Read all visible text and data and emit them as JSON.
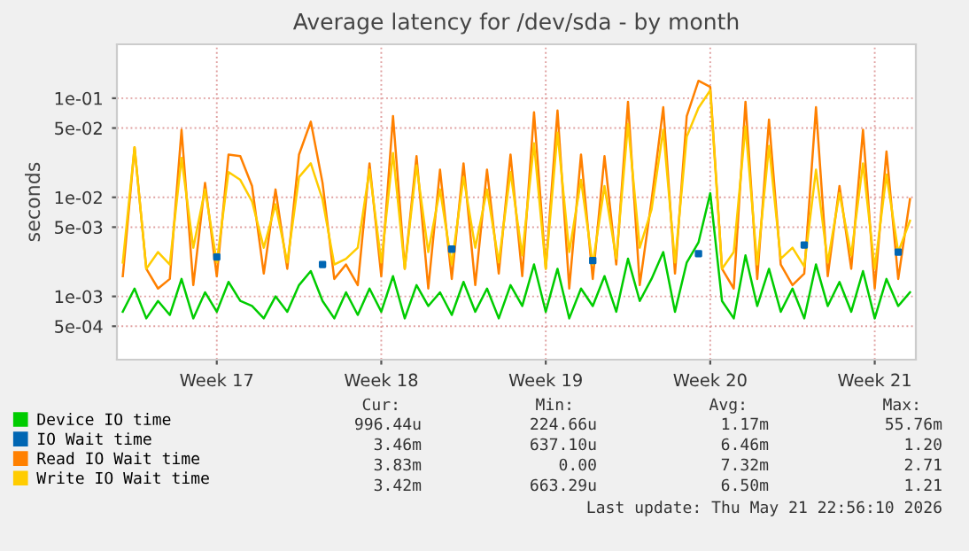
{
  "chart_data": {
    "type": "line",
    "title": "Average latency for /dev/sda - by month",
    "ylabel": "seconds",
    "log": "y",
    "grid": true,
    "legend": "bottom left",
    "line_style": "solid",
    "categories": [
      null,
      null,
      null,
      null,
      null,
      null,
      null,
      null,
      "Week 17",
      null,
      null,
      null,
      null,
      null,
      null,
      null,
      null,
      null,
      null,
      null,
      null,
      null,
      "Week 18",
      null,
      null,
      null,
      null,
      null,
      null,
      null,
      null,
      null,
      null,
      null,
      null,
      null,
      "Week 19",
      null,
      null,
      null,
      null,
      null,
      null,
      null,
      null,
      null,
      null,
      null,
      null,
      null,
      "Week 20",
      null,
      null,
      null,
      null,
      null,
      null,
      null,
      null,
      null,
      null,
      null,
      null,
      null,
      "Week 21",
      null,
      null,
      null
    ],
    "ylim": [
      0.00023,
      0.35
    ],
    "yticks": [
      {
        "value": 0.0005,
        "label": "5e-04"
      },
      {
        "value": 0.001,
        "label": "1e-03"
      },
      {
        "value": 0.005,
        "label": "5e-03"
      },
      {
        "value": 0.01,
        "label": "1e-02"
      },
      {
        "value": 0.05,
        "label": "5e-02"
      },
      {
        "value": 0.1,
        "label": "1e-01"
      }
    ],
    "series": [
      {
        "name": "Device IO time",
        "color": "#00cc00",
        "values": [
          0.0007,
          0.0012,
          0.0006,
          0.0009,
          0.00065,
          0.0015,
          0.0006,
          0.0011,
          0.0007,
          0.0014,
          0.0009,
          0.0008,
          0.0006,
          0.001,
          0.0007,
          0.0013,
          0.0018,
          0.0009,
          0.0006,
          0.0011,
          0.00065,
          0.0012,
          0.0007,
          0.0016,
          0.0006,
          0.0013,
          0.0008,
          0.0011,
          0.00065,
          0.0014,
          0.0007,
          0.0012,
          0.0006,
          0.0013,
          0.0008,
          0.0021,
          0.0007,
          0.0019,
          0.0006,
          0.0012,
          0.0008,
          0.0016,
          0.0007,
          0.0024,
          0.0009,
          0.0015,
          0.0028,
          0.0007,
          0.0022,
          0.0035,
          0.011,
          0.0009,
          0.0006,
          0.0026,
          0.0008,
          0.0019,
          0.0007,
          0.0012,
          0.0006,
          0.0021,
          0.0008,
          0.0014,
          0.0007,
          0.0018,
          0.0006,
          0.0015,
          0.0008,
          0.0011
        ]
      },
      {
        "name": "IO Wait time",
        "color": "#0066b3",
        "type": "scatter",
        "marker": "square",
        "values": [
          null,
          null,
          null,
          null,
          null,
          null,
          null,
          null,
          0.0025,
          null,
          null,
          null,
          null,
          null,
          null,
          null,
          null,
          0.0021,
          null,
          null,
          null,
          null,
          null,
          null,
          null,
          null,
          null,
          null,
          0.003,
          null,
          null,
          null,
          null,
          null,
          null,
          null,
          null,
          null,
          null,
          null,
          0.0023,
          null,
          null,
          null,
          null,
          null,
          null,
          null,
          null,
          0.0027,
          null,
          null,
          null,
          null,
          null,
          null,
          null,
          null,
          0.0033,
          null,
          null,
          null,
          null,
          null,
          null,
          null,
          0.0028,
          null
        ]
      },
      {
        "name": "Read IO Wait time",
        "color": "#ff8000",
        "values": [
          0.0016,
          0.032,
          0.0019,
          0.0012,
          0.0015,
          0.048,
          0.0013,
          0.014,
          0.0016,
          0.027,
          0.026,
          0.013,
          0.0017,
          0.012,
          0.0019,
          0.027,
          0.058,
          0.014,
          0.0015,
          0.0021,
          0.0013,
          0.022,
          0.0016,
          0.066,
          0.0019,
          0.026,
          0.0012,
          0.019,
          0.0015,
          0.022,
          0.0013,
          0.019,
          0.0017,
          0.027,
          0.0016,
          0.072,
          0.0019,
          0.075,
          0.0012,
          0.027,
          0.0015,
          0.026,
          0.0021,
          0.092,
          0.0013,
          0.0092,
          0.081,
          0.0017,
          0.066,
          0.15,
          0.13,
          0.0019,
          0.0012,
          0.092,
          0.0015,
          0.061,
          0.0021,
          0.0013,
          0.0017,
          0.081,
          0.0016,
          0.013,
          0.0019,
          0.048,
          0.0012,
          0.029,
          0.0015,
          0.0096
        ]
      },
      {
        "name": "Write IO Wait time",
        "color": "#ffcc00",
        "values": [
          0.0022,
          0.032,
          0.0019,
          0.0028,
          0.0021,
          0.025,
          0.0031,
          0.012,
          0.0022,
          0.018,
          0.015,
          0.0091,
          0.0031,
          0.0085,
          0.0022,
          0.016,
          0.022,
          0.0095,
          0.0021,
          0.0024,
          0.0031,
          0.019,
          0.0022,
          0.028,
          0.0019,
          0.021,
          0.0028,
          0.012,
          0.0021,
          0.016,
          0.0031,
          0.012,
          0.0022,
          0.018,
          0.0026,
          0.035,
          0.0019,
          0.045,
          0.0028,
          0.015,
          0.0021,
          0.013,
          0.0024,
          0.055,
          0.0031,
          0.0075,
          0.048,
          0.0022,
          0.041,
          0.08,
          0.12,
          0.0019,
          0.0028,
          0.052,
          0.0021,
          0.033,
          0.0024,
          0.0031,
          0.002,
          0.019,
          0.0022,
          0.011,
          0.0026,
          0.022,
          0.0019,
          0.017,
          0.0028,
          0.0058
        ]
      }
    ],
    "annotations": [
      "Cur:",
      "Min:",
      "Avg:",
      "Max:",
      "996.44u",
      "224.66u",
      "1.17m",
      "55.76m",
      "3.46m",
      "637.10u",
      "6.46m",
      "1.20",
      "3.83m",
      "0.00",
      "7.32m",
      "2.71",
      "3.42m",
      "663.29u",
      "6.50m",
      "1.21",
      "Last update: Thu May 21 22:56:10 2026"
    ]
  }
}
